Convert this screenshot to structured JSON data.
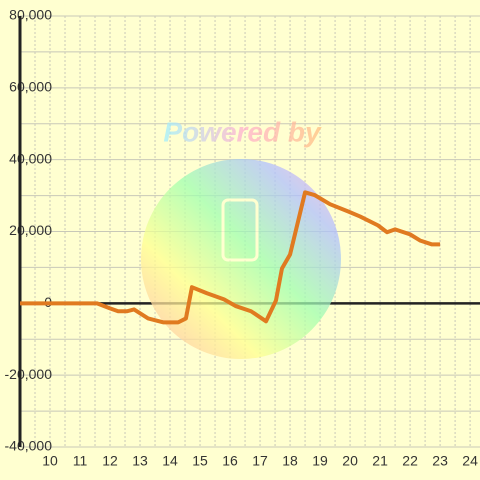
{
  "chart_data": {
    "type": "line",
    "watermark": "Powered by",
    "x": [
      9,
      11.57,
      12,
      12.27,
      12.57,
      12.8,
      13.27,
      13.77,
      14.27,
      14.53,
      14.73,
      15.23,
      15.8,
      16.2,
      16.7,
      17.2,
      17.53,
      17.73,
      18,
      18.5,
      18.83,
      19.33,
      19.93,
      20.33,
      20.93,
      21.23,
      21.5,
      22,
      22.33,
      22.73,
      23
    ],
    "series": [
      {
        "color": "#e07a20",
        "values": [
          0,
          0,
          -1400,
          -2200,
          -2200,
          -1700,
          -4200,
          -5300,
          -5300,
          -4200,
          4500,
          2800,
          1100,
          -800,
          -2200,
          -5000,
          800,
          9700,
          13600,
          30900,
          30100,
          27600,
          25600,
          24200,
          21700,
          19800,
          20600,
          19200,
          17500,
          16400,
          16400
        ]
      }
    ],
    "xlim": [
      9,
      24.33
    ],
    "xticks": [
      10,
      11,
      12,
      13,
      14,
      15,
      16,
      17,
      18,
      19,
      20,
      21,
      22,
      23,
      24
    ],
    "xminor": [
      9.5,
      10.5,
      11.5,
      12.5,
      13.5,
      14.5,
      15.5,
      16.5,
      17.5,
      18.5,
      19.5,
      20.5,
      21.5,
      22.5,
      23.5
    ],
    "ylim": [
      -40000,
      80000
    ],
    "yticks": [
      {
        "value": -40000,
        "label": "-40,000"
      },
      {
        "value": -20000,
        "label": "-20,000"
      },
      0,
      {
        "value": 20000,
        "label": "20,000"
      },
      {
        "value": 40000,
        "label": "40,000"
      },
      {
        "value": 60000,
        "label": "60,000"
      },
      {
        "value": 80000,
        "label": "80,000"
      }
    ],
    "yminor": [
      -30000,
      -10000,
      10000,
      30000,
      50000,
      70000
    ],
    "grid": true
  }
}
